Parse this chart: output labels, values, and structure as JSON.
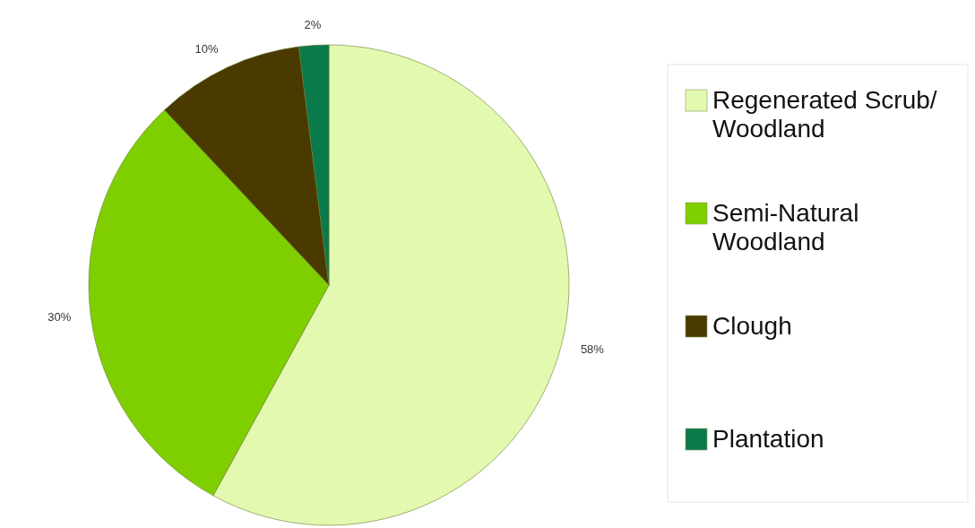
{
  "chart_data": {
    "type": "pie",
    "categories": [
      "Regenerated Scrub/ Woodland",
      "Semi-Natural Woodland",
      "Clough",
      "Plantation"
    ],
    "values": [
      58,
      30,
      10,
      2
    ],
    "colors": [
      "#e3f9b0",
      "#7fcf00",
      "#4a3a00",
      "#0a7a4a"
    ],
    "value_labels": [
      "58%",
      "30%",
      "10%",
      "2%"
    ],
    "legend": "right"
  }
}
